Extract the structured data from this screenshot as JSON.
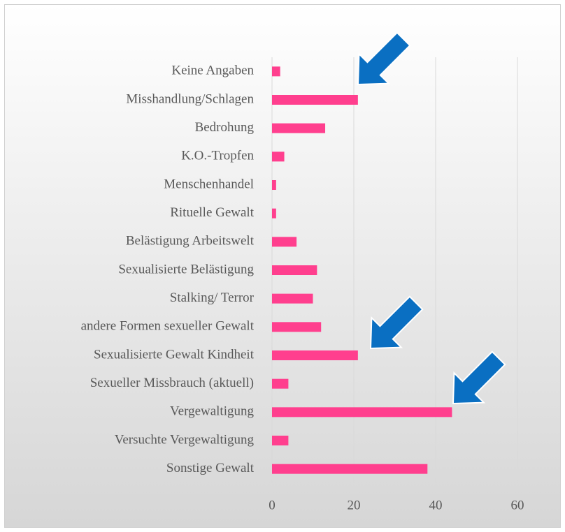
{
  "chart_data": {
    "type": "barh",
    "categories": [
      "Keine Angaben",
      "Misshandlung/Schlagen",
      "Bedrohung",
      "K.O.-Tropfen",
      "Menschenhandel",
      "Rituelle Gewalt",
      "Belästigung Arbeitswelt",
      "Sexualisierte Belästigung",
      "Stalking/ Terror",
      "andere Formen sexueller Gewalt",
      "Sexualisierte Gewalt Kindheit",
      "Sexueller Missbrauch (aktuell)",
      "Vergewaltigung",
      "Versuchte Vergewaltigung",
      "Sonstige Gewalt"
    ],
    "values": [
      2,
      21,
      13,
      3,
      1,
      1,
      6,
      11,
      10,
      12,
      21,
      4,
      44,
      4,
      38
    ],
    "color": "#ff3f8e",
    "xlim": [
      0,
      60
    ],
    "xticks": [
      0,
      20,
      40,
      60
    ],
    "grid": true
  }
}
